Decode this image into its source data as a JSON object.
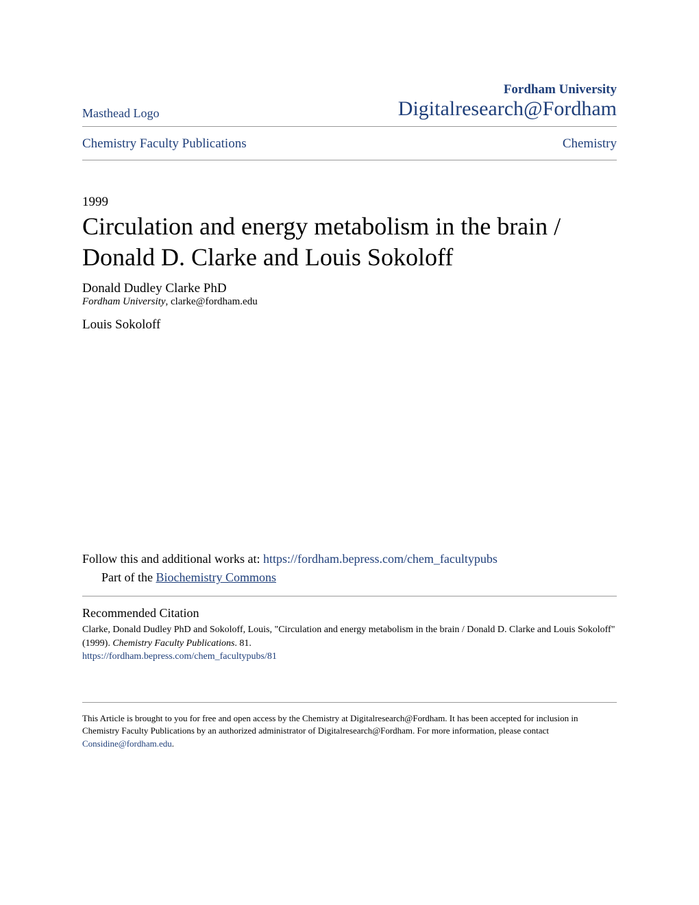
{
  "header": {
    "masthead_label": "Masthead Logo",
    "university_name": "Fordham University",
    "repository_name": "Digitalresearch@Fordham"
  },
  "nav": {
    "left_link": "Chemistry Faculty Publications",
    "right_link": "Chemistry"
  },
  "year": "1999",
  "title": "Circulation and energy metabolism in the brain / Donald D. Clarke and Louis Sokoloff",
  "authors": [
    {
      "name": "Donald Dudley Clarke PhD",
      "institution": "Fordham University",
      "email": "clarke@fordham.edu"
    },
    {
      "name": "Louis Sokoloff",
      "institution": "",
      "email": ""
    }
  ],
  "follow": {
    "prefix": "Follow this and additional works at: ",
    "url": "https://fordham.bepress.com/chem_facultypubs",
    "part_prefix": "Part of the ",
    "part_link": "Biochemistry Commons"
  },
  "citation": {
    "heading": "Recommended Citation",
    "text_prefix": "Clarke, Donald Dudley PhD and Sokoloff, Louis, \"Circulation and energy metabolism in the brain / Donald D. Clarke and Louis Sokoloff\" (1999). ",
    "publication": "Chemistry Faculty Publications",
    "text_suffix": ". 81.",
    "url": "https://fordham.bepress.com/chem_facultypubs/81"
  },
  "footer": {
    "text_prefix": "This Article is brought to you for free and open access by the Chemistry at Digitalresearch@Fordham. It has been accepted for inclusion in Chemistry Faculty Publications by an authorized administrator of Digitalresearch@Fordham. For more information, please contact ",
    "contact_link": "Considine@fordham.edu",
    "text_suffix": "."
  },
  "colors": {
    "link_blue": "#1f3f7a",
    "border_gray": "#999999",
    "text_black": "#000000",
    "background": "#ffffff"
  }
}
